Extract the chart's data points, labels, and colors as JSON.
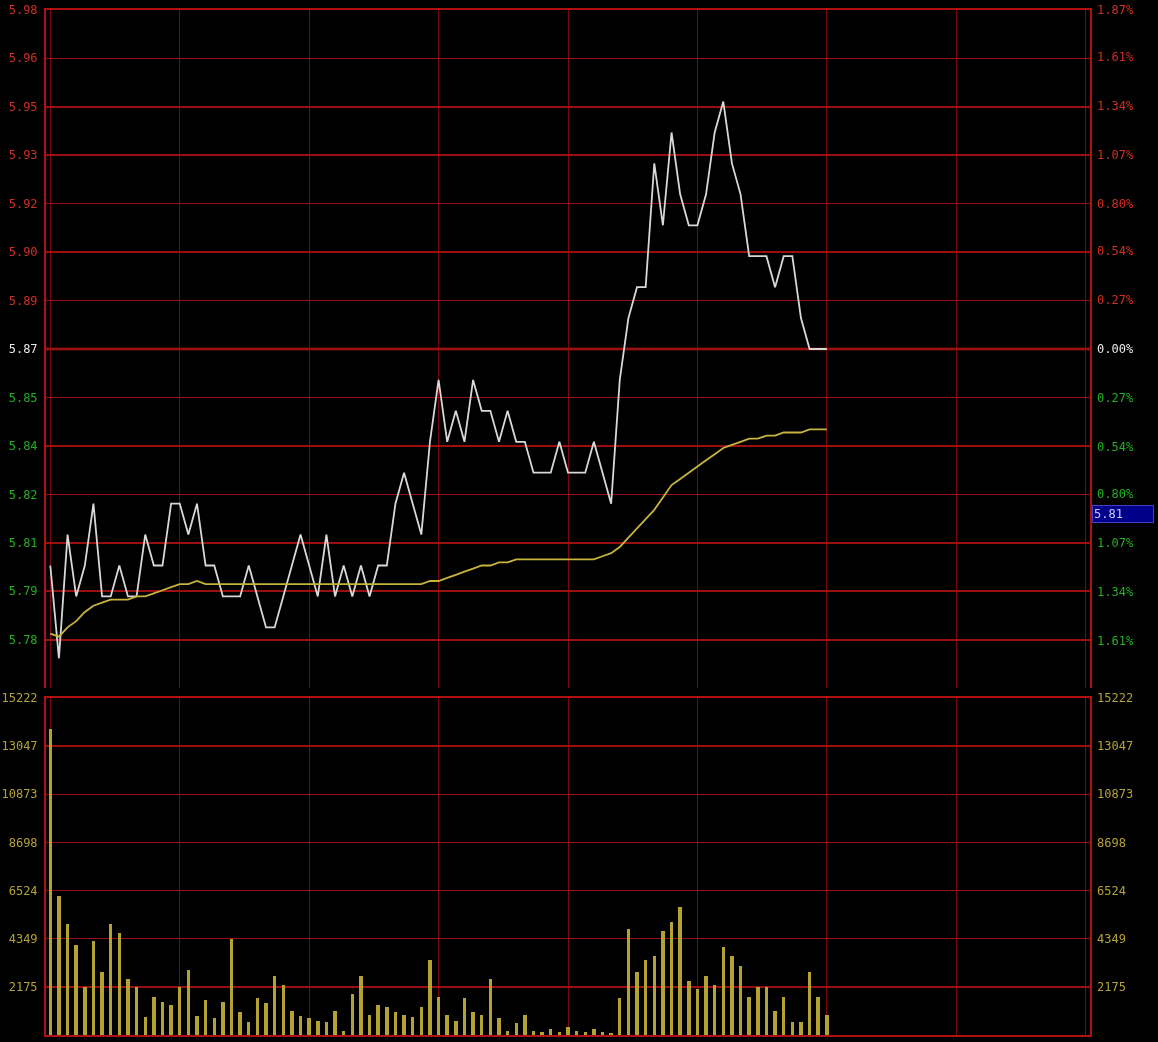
{
  "chart_data": [
    {
      "type": "line",
      "categories": [
        null,
        null,
        null,
        null,
        null,
        null,
        null,
        null,
        null,
        null,
        null,
        null,
        null,
        null,
        null,
        null,
        null,
        null,
        null,
        null,
        null,
        null,
        null,
        null,
        null,
        null,
        null,
        null,
        null,
        null,
        null,
        null,
        null,
        null,
        null,
        null,
        null,
        null,
        null,
        null,
        null,
        null,
        null,
        null,
        null,
        null,
        null,
        null,
        null,
        null,
        null,
        null,
        null,
        null,
        null,
        null,
        null,
        null,
        null,
        null,
        null,
        null,
        null,
        null,
        null,
        null,
        null,
        null,
        null,
        null,
        null,
        null,
        null,
        null,
        null,
        null,
        null,
        null,
        null,
        null,
        null,
        null,
        null,
        null,
        null,
        null,
        null,
        null,
        null,
        null,
        null,
        null,
        null,
        null,
        null,
        null,
        null,
        null,
        null,
        null,
        null,
        null,
        null,
        null,
        null,
        null,
        null,
        null,
        null,
        null,
        null,
        null,
        null,
        null,
        null,
        null,
        null,
        null,
        null,
        null,
        null
      ],
      "series": [
        {
          "color": "#d8d8d8",
          "values": [
            5.8,
            5.77,
            5.81,
            5.79,
            5.8,
            5.82,
            5.79,
            5.79,
            5.8,
            5.79,
            5.79,
            5.81,
            5.8,
            5.8,
            5.82,
            5.82,
            5.81,
            5.82,
            5.8,
            5.8,
            5.79,
            5.79,
            5.79,
            5.8,
            5.79,
            5.78,
            5.78,
            5.79,
            5.8,
            5.81,
            5.8,
            5.79,
            5.81,
            5.79,
            5.8,
            5.79,
            5.8,
            5.79,
            5.8,
            5.8,
            5.82,
            5.83,
            5.82,
            5.81,
            5.84,
            5.86,
            5.84,
            5.85,
            5.84,
            5.86,
            5.85,
            5.85,
            5.84,
            5.85,
            5.84,
            5.84,
            5.83,
            5.83,
            5.83,
            5.84,
            5.83,
            5.83,
            5.83,
            5.84,
            5.83,
            5.82,
            5.86,
            5.88,
            5.89,
            5.89,
            5.93,
            5.91,
            5.94,
            5.92,
            5.91,
            5.91,
            5.92,
            5.94,
            5.95,
            5.93,
            5.92,
            5.9,
            5.9,
            5.9,
            5.89,
            5.9,
            5.9,
            5.88,
            5.87,
            5.87,
            5.87,
            null,
            null,
            null,
            null,
            null,
            null,
            null,
            null,
            null,
            null,
            null,
            null,
            null,
            null,
            null,
            null,
            null,
            null,
            null,
            null,
            null,
            null,
            null,
            null,
            null,
            null,
            null,
            null,
            null,
            null
          ]
        },
        {
          "color": "#c8b43c",
          "values": [
            5.778,
            5.777,
            5.78,
            5.782,
            5.785,
            5.787,
            5.788,
            5.789,
            5.789,
            5.789,
            5.79,
            5.79,
            5.791,
            5.792,
            5.793,
            5.794,
            5.794,
            5.795,
            5.794,
            5.794,
            5.794,
            5.794,
            5.794,
            5.794,
            5.794,
            5.794,
            5.794,
            5.794,
            5.794,
            5.794,
            5.794,
            5.794,
            5.794,
            5.794,
            5.794,
            5.794,
            5.794,
            5.794,
            5.794,
            5.794,
            5.794,
            5.794,
            5.794,
            5.794,
            5.795,
            5.795,
            5.796,
            5.797,
            5.798,
            5.799,
            5.8,
            5.8,
            5.801,
            5.801,
            5.802,
            5.802,
            5.802,
            5.802,
            5.802,
            5.802,
            5.802,
            5.802,
            5.802,
            5.802,
            5.803,
            5.804,
            5.806,
            5.809,
            5.812,
            5.815,
            5.818,
            5.822,
            5.826,
            5.828,
            5.83,
            5.832,
            5.834,
            5.836,
            5.838,
            5.839,
            5.84,
            5.841,
            5.841,
            5.842,
            5.842,
            5.843,
            5.843,
            5.843,
            5.844,
            5.844,
            5.844,
            null,
            null,
            null,
            null,
            null,
            null,
            null,
            null,
            null,
            null,
            null,
            null,
            null,
            null,
            null,
            null,
            null,
            null,
            null,
            null,
            null,
            null,
            null,
            null,
            null,
            null,
            null,
            null,
            null,
            null
          ]
        }
      ],
      "ylim": [
        5.7604,
        5.9796
      ],
      "yticks": [
        {
          "value": 5.9796,
          "label": "5.98"
        },
        {
          "value": 5.964,
          "label": "5.96"
        },
        {
          "value": 5.9483,
          "label": "5.95"
        },
        {
          "value": 5.9327,
          "label": "5.93"
        },
        {
          "value": 5.917,
          "label": "5.92"
        },
        {
          "value": 5.9013,
          "label": "5.90"
        },
        {
          "value": 5.8857,
          "label": "5.89"
        },
        {
          "value": 5.87,
          "label": "5.87"
        },
        {
          "value": 5.8543,
          "label": "5.85"
        },
        {
          "value": 5.8387,
          "label": "5.84"
        },
        {
          "value": 5.823,
          "label": "5.82"
        },
        {
          "value": 5.8073,
          "label": "5.81"
        },
        {
          "value": 5.7917,
          "label": "5.79"
        },
        {
          "value": 5.776,
          "label": "5.78"
        }
      ],
      "y2lim": [
        -1.87,
        1.87
      ],
      "y2ticks": [
        {
          "value": 1.87,
          "label": "1.87%"
        },
        {
          "value": 1.61,
          "label": "1.61%"
        },
        {
          "value": 1.34,
          "label": "1.34%"
        },
        {
          "value": 1.07,
          "label": "1.07%"
        },
        {
          "value": 0.8,
          "label": "0.80%"
        },
        {
          "value": 0.54,
          "label": "0.54%"
        },
        {
          "value": 0.27,
          "label": "0.27%"
        },
        {
          "value": 0,
          "label": "0.00%"
        },
        {
          "value": -0.27,
          "label": "0.27%"
        },
        {
          "value": -0.54,
          "label": "0.54%"
        },
        {
          "value": -0.8,
          "label": "0.80%"
        },
        {
          "value": -1.07,
          "label": "1.07%"
        },
        {
          "value": -1.34,
          "label": "1.34%"
        },
        {
          "value": -1.61,
          "label": "1.61%"
        }
      ],
      "ref_lines": [
        {
          "axis": "y",
          "value": 5.87,
          "color": "#d01818"
        }
      ],
      "annotations": [
        "5.81"
      ],
      "grid": true
    },
    {
      "type": "bar",
      "categories": [
        null,
        null,
        null,
        null,
        null,
        null,
        null,
        null,
        null,
        null,
        null,
        null,
        null,
        null,
        null,
        null,
        null,
        null,
        null,
        null,
        null,
        null,
        null,
        null,
        null,
        null,
        null,
        null,
        null,
        null,
        null,
        null,
        null,
        null,
        null,
        null,
        null,
        null,
        null,
        null,
        null,
        null,
        null,
        null,
        null,
        null,
        null,
        null,
        null,
        null,
        null,
        null,
        null,
        null,
        null,
        null,
        null,
        null,
        null,
        null,
        null,
        null,
        null,
        null,
        null,
        null,
        null,
        null,
        null,
        null,
        null,
        null,
        null,
        null,
        null,
        null,
        null,
        null,
        null,
        null,
        null,
        null,
        null,
        null,
        null,
        null,
        null,
        null,
        null,
        null,
        null,
        null,
        null,
        null,
        null,
        null,
        null,
        null,
        null,
        null,
        null,
        null,
        null,
        null,
        null,
        null,
        null,
        null,
        null,
        null,
        null,
        null,
        null,
        null,
        null,
        null,
        null,
        null,
        null,
        null,
        null
      ],
      "color": "#b4a232",
      "values": [
        13800,
        6290,
        5000,
        4060,
        2190,
        4240,
        2850,
        5000,
        4600,
        2540,
        2190,
        800,
        1700,
        1500,
        1340,
        2190,
        2940,
        850,
        1560,
        750,
        1500,
        4330,
        1050,
        600,
        1650,
        1430,
        2680,
        2280,
        1070,
        850,
        750,
        650,
        580,
        1070,
        200,
        1830,
        2680,
        900,
        1340,
        1250,
        1050,
        900,
        800,
        1250,
        3390,
        1700,
        900,
        650,
        1650,
        1050,
        900,
        2540,
        750,
        200,
        530,
        900,
        200,
        150,
        280,
        150,
        350,
        200,
        150,
        250,
        150,
        100,
        1650,
        4770,
        2850,
        3390,
        3570,
        4690,
        5090,
        5800,
        2450,
        2100,
        2680,
        2280,
        3970,
        3570,
        3120,
        1700,
        2190,
        2190,
        1070,
        1700,
        600,
        600,
        2850,
        1700,
        900,
        null,
        null,
        null,
        null,
        null,
        null,
        null,
        null,
        null,
        null,
        null,
        null,
        null,
        null,
        null,
        null,
        null,
        null,
        null,
        null,
        null,
        null,
        null,
        null,
        null,
        null,
        null,
        null,
        null,
        null
      ],
      "ylim": [
        0,
        15222
      ],
      "yticks": [
        2175,
        4349,
        6524,
        8698,
        10873,
        13047,
        15222
      ],
      "y2lim": [
        0,
        15222
      ],
      "y2ticks": [
        2175,
        4349,
        6524,
        8698,
        10873,
        13047,
        15222
      ],
      "grid": true
    }
  ]
}
